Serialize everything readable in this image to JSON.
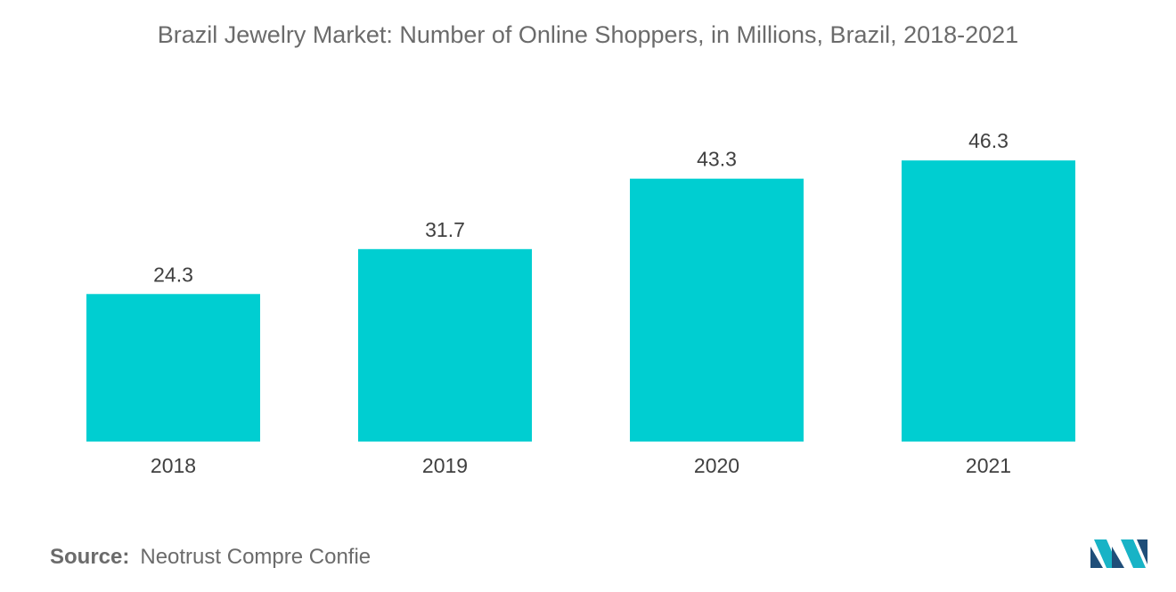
{
  "colors": {
    "bar": "#00CED1",
    "logo_dark": "#1f4e79",
    "logo_teal": "#18b3c6"
  },
  "chart_data": {
    "type": "bar",
    "title": "Brazil Jewelry Market: Number of Online Shoppers, in Millions, Brazil, 2018-2021",
    "categories": [
      "2018",
      "2019",
      "2020",
      "2021"
    ],
    "values": [
      24.3,
      31.7,
      43.3,
      46.3
    ],
    "value_labels": [
      "24.3",
      "31.7",
      "43.3",
      "46.3"
    ],
    "xlabel": "",
    "ylabel": "",
    "ylim": [
      0,
      50
    ],
    "grid": false,
    "legend": "none"
  },
  "source": {
    "label": "Source:",
    "text": "Neotrust Compre Confie"
  },
  "logo": {
    "icon": "mordor-intelligence-logo-icon"
  }
}
